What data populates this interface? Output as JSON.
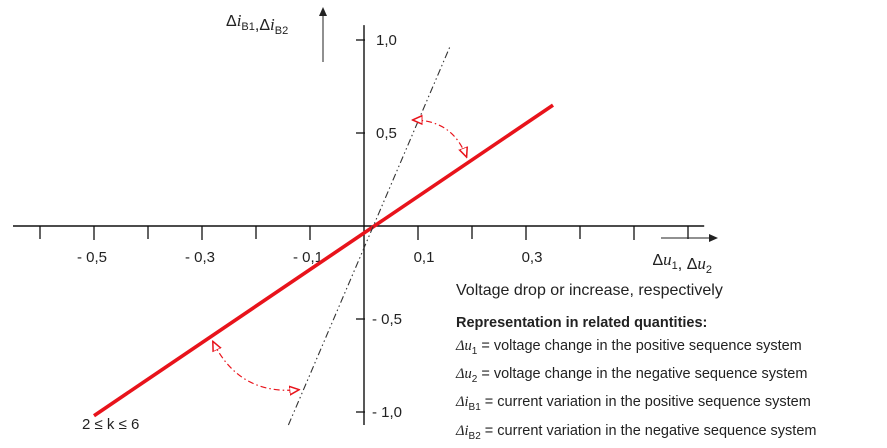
{
  "chart_data": {
    "type": "line",
    "xlabel": "Δu1, Δu2",
    "ylabel": "ΔiB1,ΔiB2",
    "x_ticks": [
      {
        "value": -0.5,
        "label": "- 0,5"
      },
      {
        "value": -0.3,
        "label": "- 0,3"
      },
      {
        "value": -0.1,
        "label": "- 0,1"
      },
      {
        "value": 0.1,
        "label": "0,1"
      },
      {
        "value": 0.3,
        "label": "0,3"
      }
    ],
    "y_ticks": [
      {
        "value": 1.0,
        "label": "1,0"
      },
      {
        "value": 0.5,
        "label": "0,5"
      },
      {
        "value": -0.5,
        "label": "- 0,5"
      },
      {
        "value": -1.0,
        "label": "- 1,0"
      }
    ],
    "xlim": [
      -0.65,
      0.63
    ],
    "ylim": [
      -1.07,
      1.08
    ],
    "series": [
      {
        "style": "solid",
        "color": "#e8131b",
        "x": [
          -0.5,
          0.35
        ],
        "y": [
          -1.02,
          0.65
        ]
      },
      {
        "style": "dash-dot-dot",
        "color": "#333333",
        "x": [
          -0.14,
          0.16
        ],
        "y": [
          -1.07,
          0.97
        ]
      }
    ],
    "annotations": [
      {
        "type": "curved-arrow",
        "color": "#e8131b",
        "from": [
          0.09,
          0.57
        ],
        "to": [
          0.19,
          0.37
        ]
      },
      {
        "type": "curved-arrow",
        "color": "#e8131b",
        "from": [
          -0.28,
          -0.62
        ],
        "to": [
          -0.12,
          -0.88
        ]
      }
    ],
    "grid": false
  },
  "text": {
    "caption": "Voltage drop or increase, respectively",
    "range_label": "2 ≤ k ≤ 6",
    "legend_heading": "Representation in related quantities:",
    "legend": [
      {
        "sym": "Δu",
        "sub": "1",
        "text": " = voltage change in the positive sequence system"
      },
      {
        "sym": "Δu",
        "sub": "2",
        "text": " = voltage change in the negative sequence system"
      },
      {
        "sym": "Δi",
        "sub": "B1",
        "text": " = current variation in the positive sequence system"
      },
      {
        "sym": "Δi",
        "sub": "B2",
        "text": " = current variation in the negative sequence system"
      }
    ]
  }
}
